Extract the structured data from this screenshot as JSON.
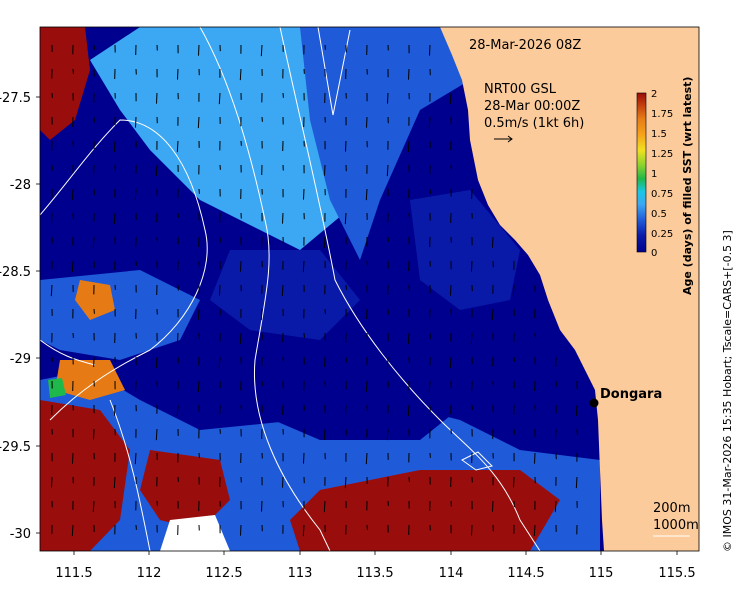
{
  "map": {
    "timestamp": "28-Mar-2026 08Z",
    "current_product": "NRT00 GSL",
    "current_time": "28-Mar 00:00Z",
    "vector_scale_label": "0.5m/s (1kt 6h)",
    "place_label": "Dongara",
    "contour_labels": [
      "200m",
      "1000m"
    ],
    "x_ticks": [
      "111.5",
      "112",
      "112.5",
      "113",
      "113.5",
      "114",
      "114.5",
      "115",
      "115.5"
    ],
    "y_ticks": [
      "-27.5",
      "-28",
      "-28.5",
      "-29",
      "-29.5",
      "-30"
    ],
    "colors": {
      "land": "#fccb9c",
      "dark_navy": "#00008f",
      "navy": "#0a1aa8",
      "mid_blue": "#1f5ad9",
      "light_blue": "#3ca7f2",
      "cyan": "#19c6e6",
      "green": "#1fb84a",
      "orange": "#e67b16",
      "dark_red": "#9a0d0d",
      "white": "#ffffff"
    }
  },
  "colorbar": {
    "title": "Age (days) of filled SST (wrt latest)",
    "tick_labels": [
      "2",
      "1.75",
      "1.5",
      "1.25",
      "1",
      "0.75",
      "0.5",
      "0.25",
      "0"
    ],
    "colors": [
      "#00008f",
      "#0a1aa8",
      "#1f5ad9",
      "#3ca7f2",
      "#19c6e6",
      "#1fb84a",
      "#8fd42c",
      "#f0e020",
      "#f6a21a",
      "#e67b16",
      "#c03a0e",
      "#9a0d0d"
    ]
  },
  "credit": "© IMOS 31-Mar-2026 15:35 Hobart; Tscale=CARS+[-0.5 3]"
}
